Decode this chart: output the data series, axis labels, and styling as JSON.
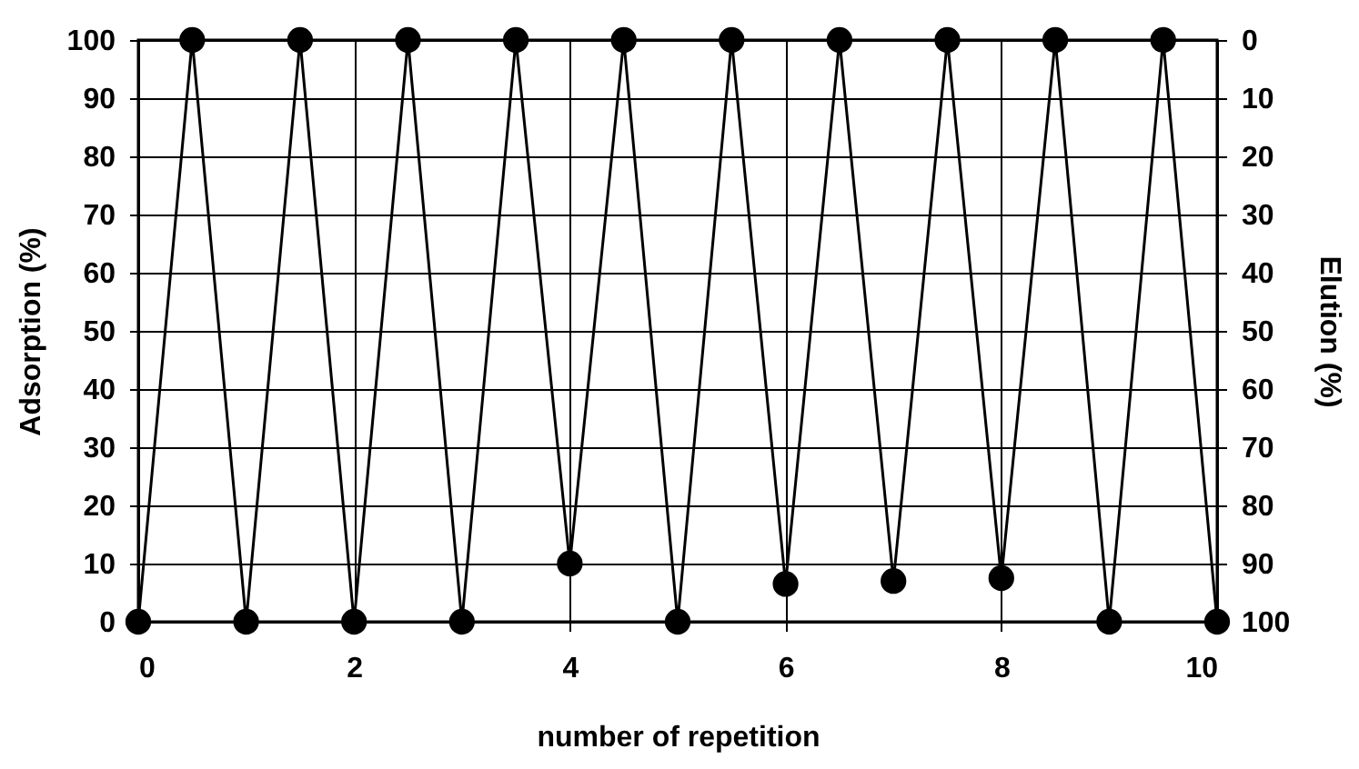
{
  "chart_data": {
    "type": "line",
    "xlabel": "number of repetition",
    "ylabel": "Adsorption (%)",
    "y2label": "Elution (%)",
    "x": [
      0,
      0.5,
      1,
      1.5,
      2,
      2.5,
      3,
      3.5,
      4,
      4.5,
      5,
      5.5,
      6,
      6.5,
      7,
      7.5,
      8,
      8.5,
      9,
      9.5,
      10
    ],
    "series": [
      {
        "color": "#000000",
        "values": [
          0,
          100,
          0,
          100,
          0,
          100,
          0,
          100,
          10,
          100,
          0,
          100,
          6.5,
          100,
          7,
          100,
          7.5,
          100,
          0,
          100,
          0
        ]
      }
    ],
    "xlim": [
      0,
      10
    ],
    "xticks": [
      0,
      2,
      4,
      6,
      8,
      10
    ],
    "ylim": [
      0,
      100
    ],
    "yticks": [
      0,
      10,
      20,
      30,
      40,
      50,
      60,
      70,
      80,
      90,
      100
    ],
    "y2lim": [
      100,
      0
    ],
    "y2ticks": [
      0,
      10,
      20,
      30,
      40,
      50,
      60,
      70,
      80,
      90,
      100
    ],
    "grid": true,
    "marker": "circle",
    "line_style": "solid",
    "legend": false
  }
}
